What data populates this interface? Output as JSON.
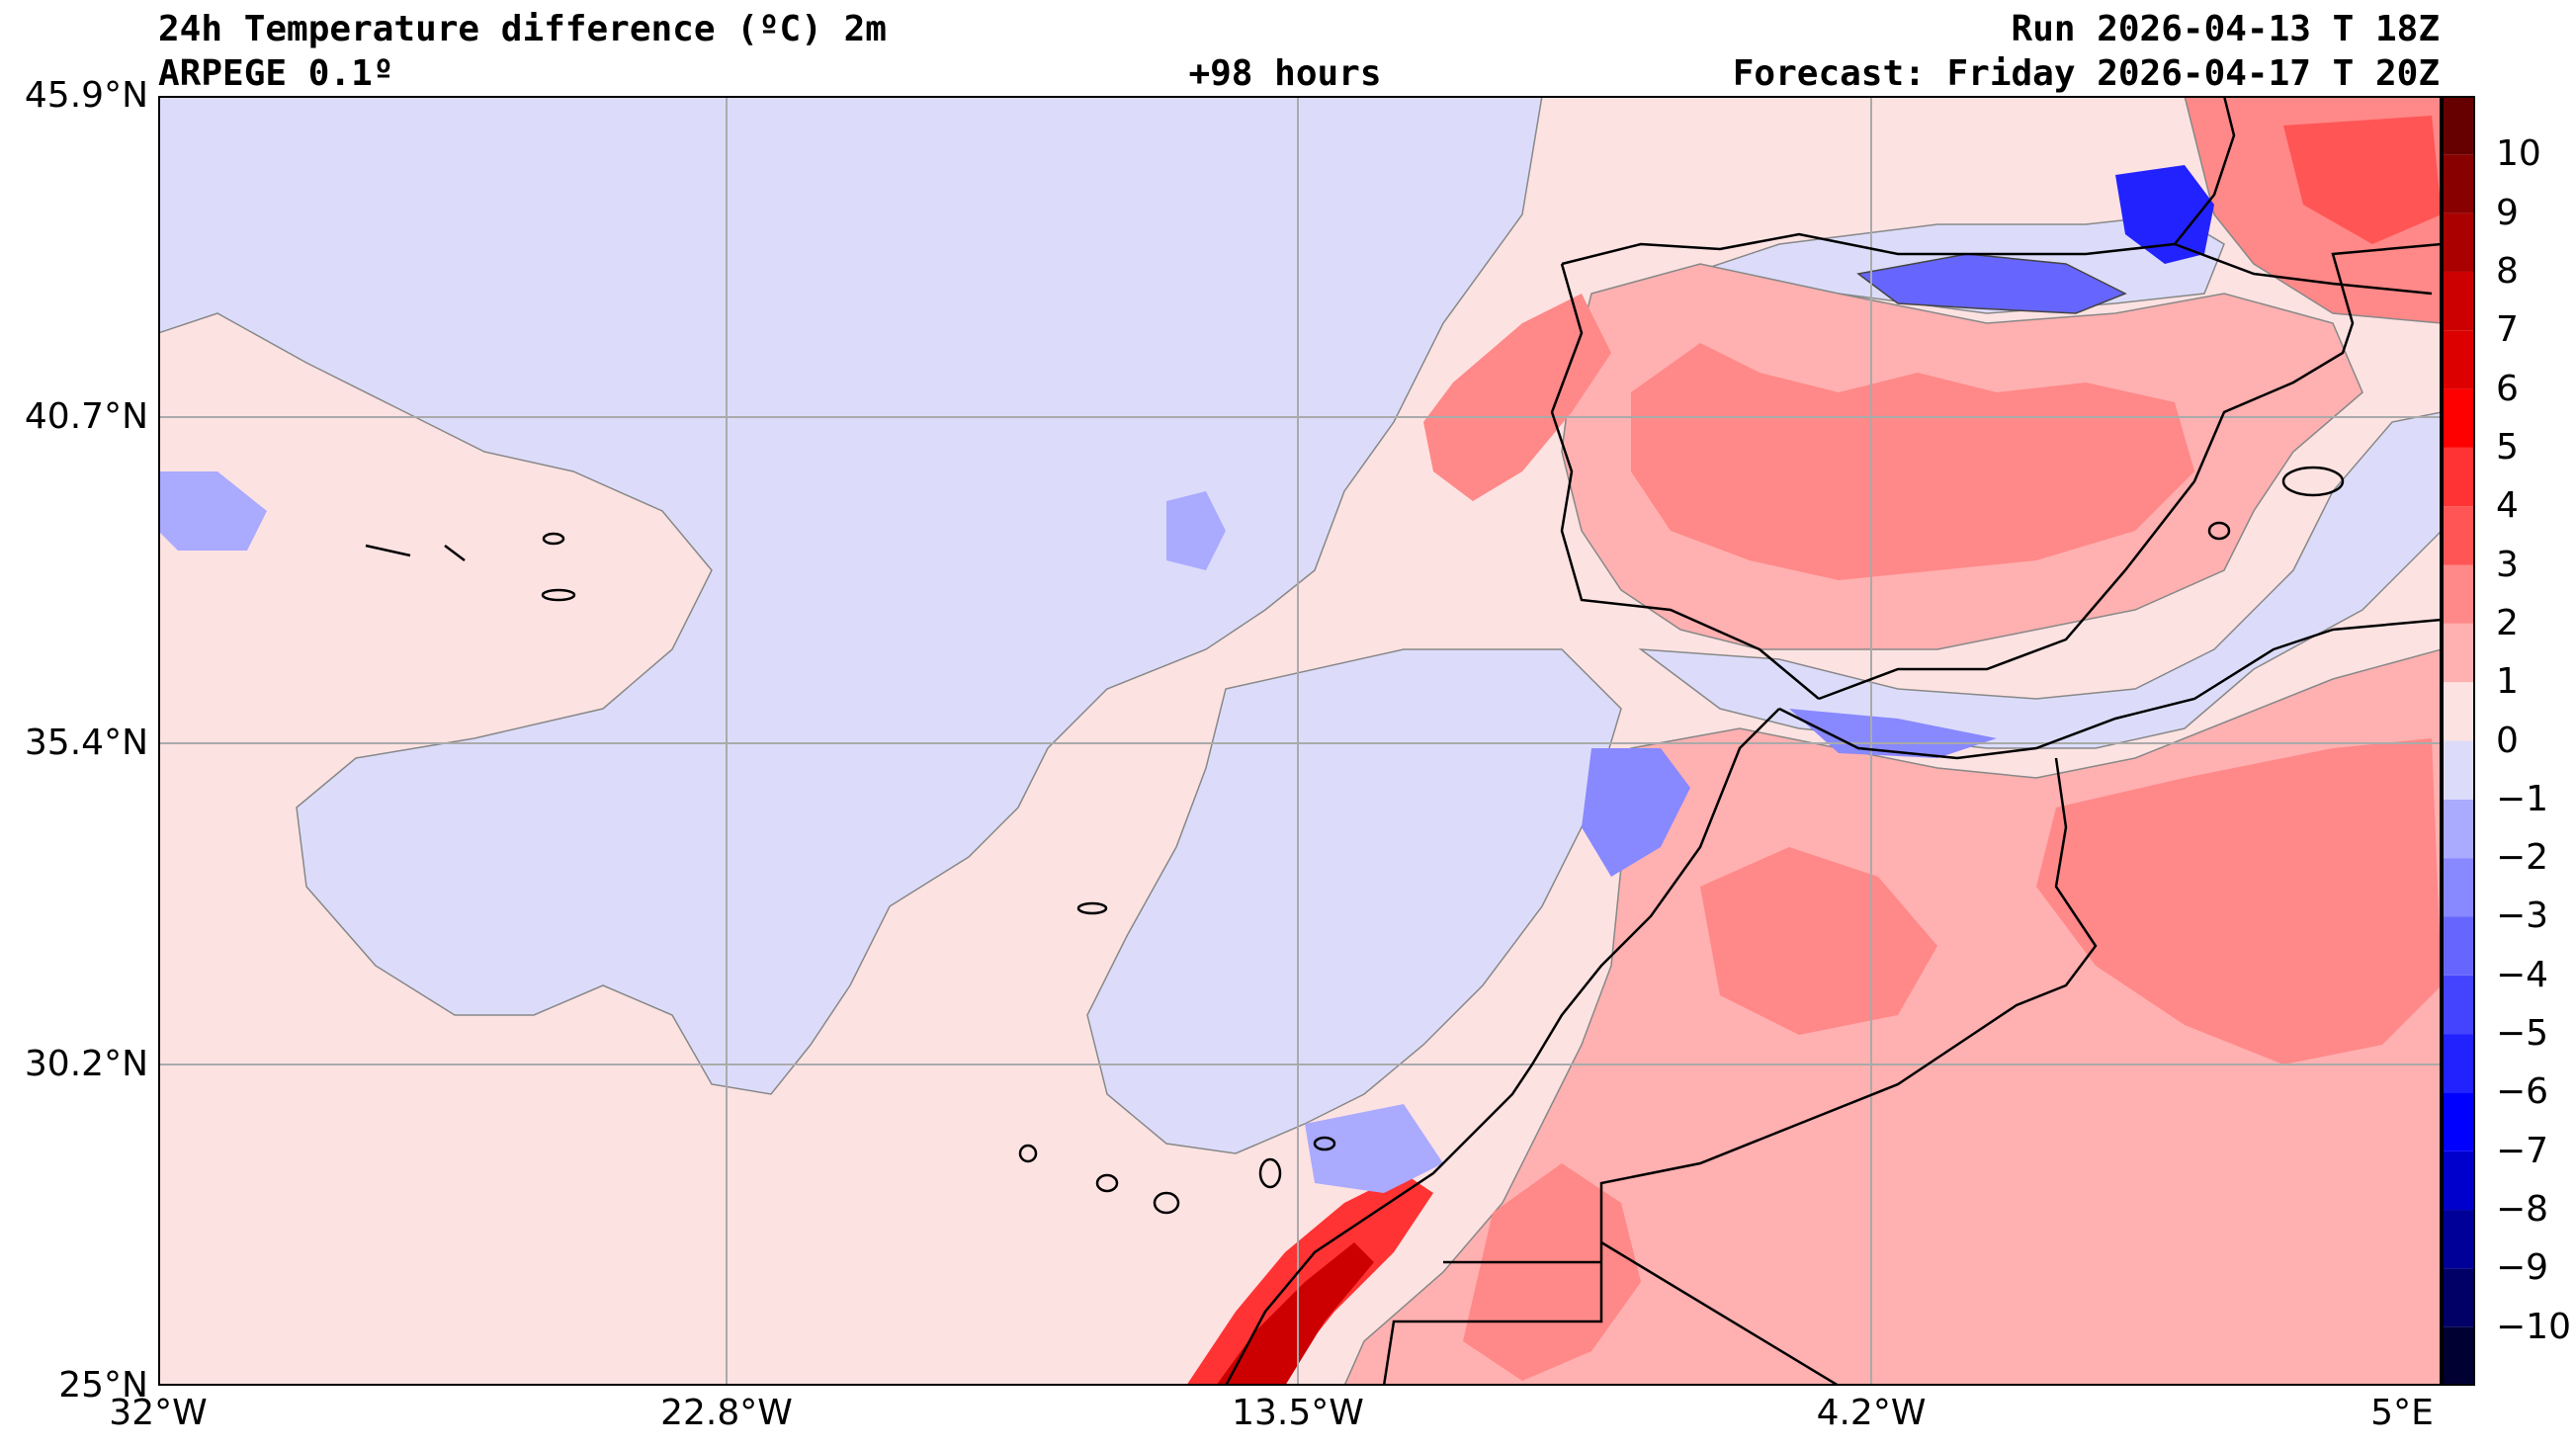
{
  "header": {
    "title": "24h Temperature difference (ºC) 2m",
    "model": "ARPEGE 0.1º",
    "lead_time": "+98 hours",
    "run": "Run 2026-04-13 T 18Z",
    "forecast": "Forecast: Friday 2026-04-17 T 20Z"
  },
  "map": {
    "extent_lon": [
      -32,
      5
    ],
    "extent_lat": [
      25,
      45.9
    ],
    "lat_labels": [
      "45.9°N",
      "40.7°N",
      "35.4°N",
      "30.2°N",
      "25°N"
    ],
    "lon_labels": [
      "32°W",
      "22.8°W",
      "13.5°W",
      "4.2°W",
      "5°E"
    ],
    "grid": true
  },
  "colorbar": {
    "levels": [
      -11,
      -10,
      -9,
      -8,
      -7,
      -6,
      -5,
      -4,
      -3,
      -2,
      -1,
      0,
      1,
      2,
      3,
      4,
      5,
      6,
      7,
      8,
      9,
      10,
      11
    ],
    "tick_labels": [
      "10",
      "9",
      "8",
      "7",
      "6",
      "5",
      "4",
      "3",
      "2",
      "1",
      "0",
      "−1",
      "−2",
      "−3",
      "−4",
      "−5",
      "−6",
      "−7",
      "−8",
      "−9",
      "−10"
    ],
    "colors": [
      "#000033",
      "#000066",
      "#000099",
      "#0000cc",
      "#0000ff",
      "#2222ff",
      "#4444ff",
      "#6666ff",
      "#8888ff",
      "#aaaaff",
      "#dcdcfa",
      "#fde2e2",
      "#ffb0b0",
      "#ff8888",
      "#ff5555",
      "#ff3333",
      "#ff0000",
      "#dd0000",
      "#cc0000",
      "#aa0000",
      "#880000",
      "#660000"
    ]
  }
}
